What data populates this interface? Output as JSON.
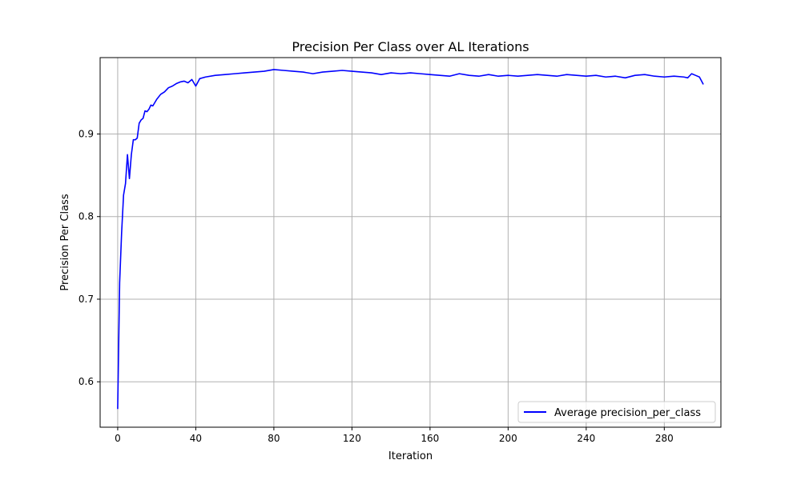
{
  "chart_data": {
    "type": "line",
    "title": "Precision Per Class over AL Iterations",
    "xlabel": "Iteration",
    "ylabel": "Precision Per Class",
    "xlim": [
      -9,
      309
    ],
    "ylim": [
      0.545,
      0.9925
    ],
    "xticks": [
      0,
      40,
      80,
      120,
      160,
      200,
      240,
      280
    ],
    "yticks": [
      0.6,
      0.7,
      0.8,
      0.9
    ],
    "xtick_labels": [
      "0",
      "40",
      "80",
      "120",
      "160",
      "200",
      "240",
      "280"
    ],
    "ytick_labels": [
      "0.6",
      "0.7",
      "0.8",
      "0.9"
    ],
    "grid": true,
    "legend_position": "lower-right",
    "series": [
      {
        "name": "Average precision_per_class",
        "color": "#0000ff",
        "x": [
          0,
          1,
          2,
          3,
          4,
          5,
          6,
          7,
          8,
          9,
          10,
          11,
          12,
          13,
          14,
          15,
          16,
          17,
          18,
          19,
          20,
          22,
          24,
          26,
          28,
          30,
          32,
          34,
          36,
          38,
          40,
          42,
          45,
          50,
          55,
          60,
          65,
          70,
          75,
          80,
          85,
          90,
          95,
          100,
          105,
          110,
          115,
          120,
          125,
          130,
          135,
          140,
          145,
          150,
          155,
          160,
          165,
          170,
          175,
          180,
          185,
          190,
          195,
          200,
          205,
          210,
          215,
          220,
          225,
          230,
          235,
          240,
          245,
          250,
          255,
          260,
          265,
          270,
          275,
          280,
          285,
          290,
          292,
          294,
          296,
          298,
          300
        ],
        "values": [
          0.567,
          0.72,
          0.78,
          0.826,
          0.84,
          0.875,
          0.846,
          0.875,
          0.893,
          0.893,
          0.895,
          0.913,
          0.917,
          0.919,
          0.928,
          0.927,
          0.93,
          0.935,
          0.934,
          0.938,
          0.942,
          0.948,
          0.951,
          0.956,
          0.958,
          0.961,
          0.963,
          0.964,
          0.962,
          0.966,
          0.958,
          0.967,
          0.969,
          0.971,
          0.972,
          0.973,
          0.974,
          0.975,
          0.976,
          0.978,
          0.977,
          0.976,
          0.975,
          0.973,
          0.975,
          0.976,
          0.977,
          0.976,
          0.975,
          0.974,
          0.972,
          0.974,
          0.973,
          0.974,
          0.973,
          0.972,
          0.971,
          0.97,
          0.973,
          0.971,
          0.97,
          0.972,
          0.97,
          0.971,
          0.97,
          0.971,
          0.972,
          0.971,
          0.97,
          0.972,
          0.971,
          0.97,
          0.971,
          0.969,
          0.97,
          0.968,
          0.971,
          0.972,
          0.97,
          0.969,
          0.97,
          0.969,
          0.968,
          0.973,
          0.971,
          0.969,
          0.96
        ]
      }
    ]
  }
}
